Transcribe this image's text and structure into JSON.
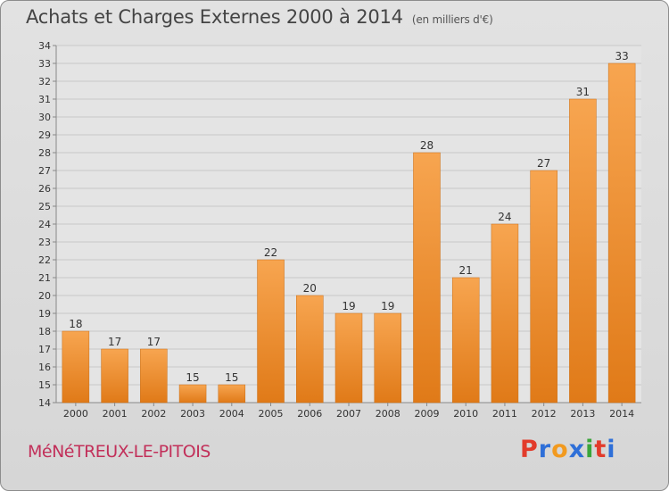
{
  "header": {
    "title": "Achats et Charges Externes 2000 à 2014",
    "unit": "(en milliers d'€)"
  },
  "footer": {
    "commune": "MéNéTREUX-LE-PITOIS",
    "brand": "Proxiti",
    "brand_colors": [
      "#e23b2b",
      "#2e6fd8",
      "#f29a1f",
      "#2e6fd8",
      "#3aa53a",
      "#e23b2b",
      "#2e6fd8"
    ]
  },
  "chart_data": {
    "type": "bar",
    "title": "Achats et Charges Externes 2000 à 2014",
    "subtitle": "(en milliers d'€)",
    "xlabel": "",
    "ylabel": "",
    "categories": [
      "2000",
      "2001",
      "2002",
      "2003",
      "2004",
      "2005",
      "2006",
      "2007",
      "2008",
      "2009",
      "2010",
      "2011",
      "2012",
      "2013",
      "2014"
    ],
    "values": [
      18,
      17,
      17,
      15,
      15,
      22,
      20,
      19,
      19,
      28,
      21,
      24,
      27,
      31,
      33
    ],
    "ylim": [
      14,
      34
    ],
    "yticks": [
      14,
      15,
      16,
      17,
      18,
      19,
      20,
      21,
      22,
      23,
      24,
      25,
      26,
      27,
      28,
      29,
      30,
      31,
      32,
      33,
      34
    ],
    "grid": true,
    "legend": "none",
    "colors": {
      "bar_light": "#f7a550",
      "bar_dark": "#e07a18"
    }
  }
}
